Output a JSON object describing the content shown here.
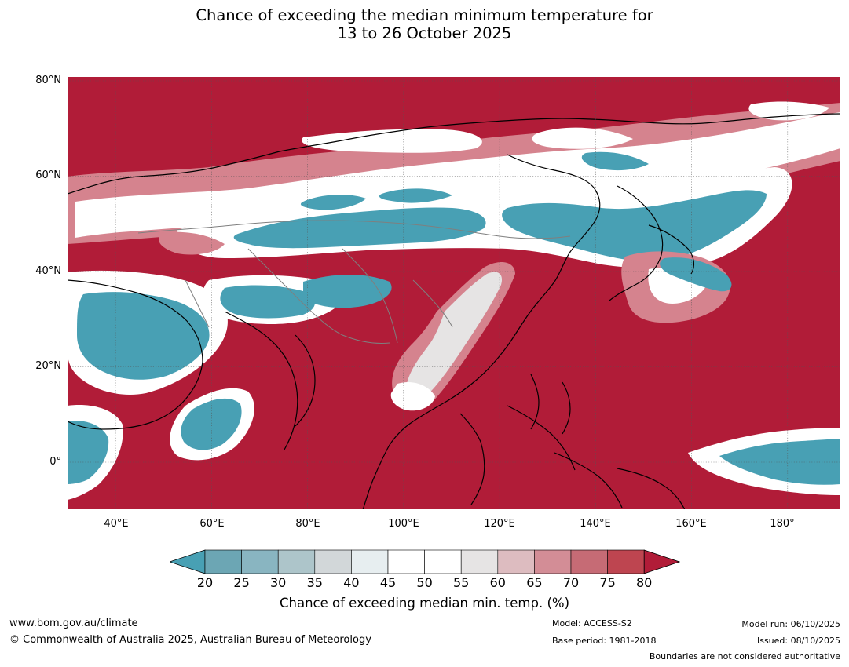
{
  "title": {
    "line1": "Chance of exceeding the median minimum temperature for",
    "line2": "13 to 26 October 2025"
  },
  "colors": {
    "ocean": "#b11c38",
    "teal": "#48a0b4",
    "white": "#ffffff",
    "light_grey": "#e6e6e8",
    "pink_light": "#dcb2ba",
    "pink": "#d5838e",
    "rose": "#c6616e",
    "red": "#bf434f",
    "coast": "#000000",
    "border": "#7f7f7f",
    "grid": "#555555"
  },
  "map": {
    "variable": "Chance of exceeding median minimum temperature",
    "lat_labels": [
      "80°N",
      "60°N",
      "40°N",
      "20°N",
      "0°"
    ],
    "lon_labels": [
      "40°E",
      "60°E",
      "80°E",
      "100°E",
      "120°E",
      "140°E",
      "160°E",
      "180°"
    ],
    "extent_lon": [
      30,
      191
    ],
    "extent_lat": [
      -10,
      81
    ]
  },
  "colorbar": {
    "ticks": [
      "20",
      "25",
      "30",
      "35",
      "40",
      "45",
      "50",
      "55",
      "60",
      "65",
      "70",
      "75",
      "80"
    ],
    "bin_colors": [
      "#6ca6b4",
      "#89b5c1",
      "#adc5ca",
      "#d2d7d9",
      "#e7eef0",
      "#ffffff",
      "#ffffff",
      "#e6e4e4",
      "#ddbcc0",
      "#d38d96",
      "#c66b75",
      "#be4550"
    ],
    "below_color": "#48a0b4",
    "above_color": "#b11c38",
    "label": "Chance of exceeding median min. temp. (%)"
  },
  "footer": {
    "website": "www.bom.gov.au/climate",
    "copyright": "© Commonwealth of Australia 2025, Australian Bureau of Meteorology",
    "model": "Model: ACCESS-S2",
    "base_period": "Base period: 1981-2018",
    "model_run": "Model run: 06/10/2025",
    "issued": "Issued: 08/10/2025",
    "boundaries": "Boundaries are not considered authoritative"
  }
}
